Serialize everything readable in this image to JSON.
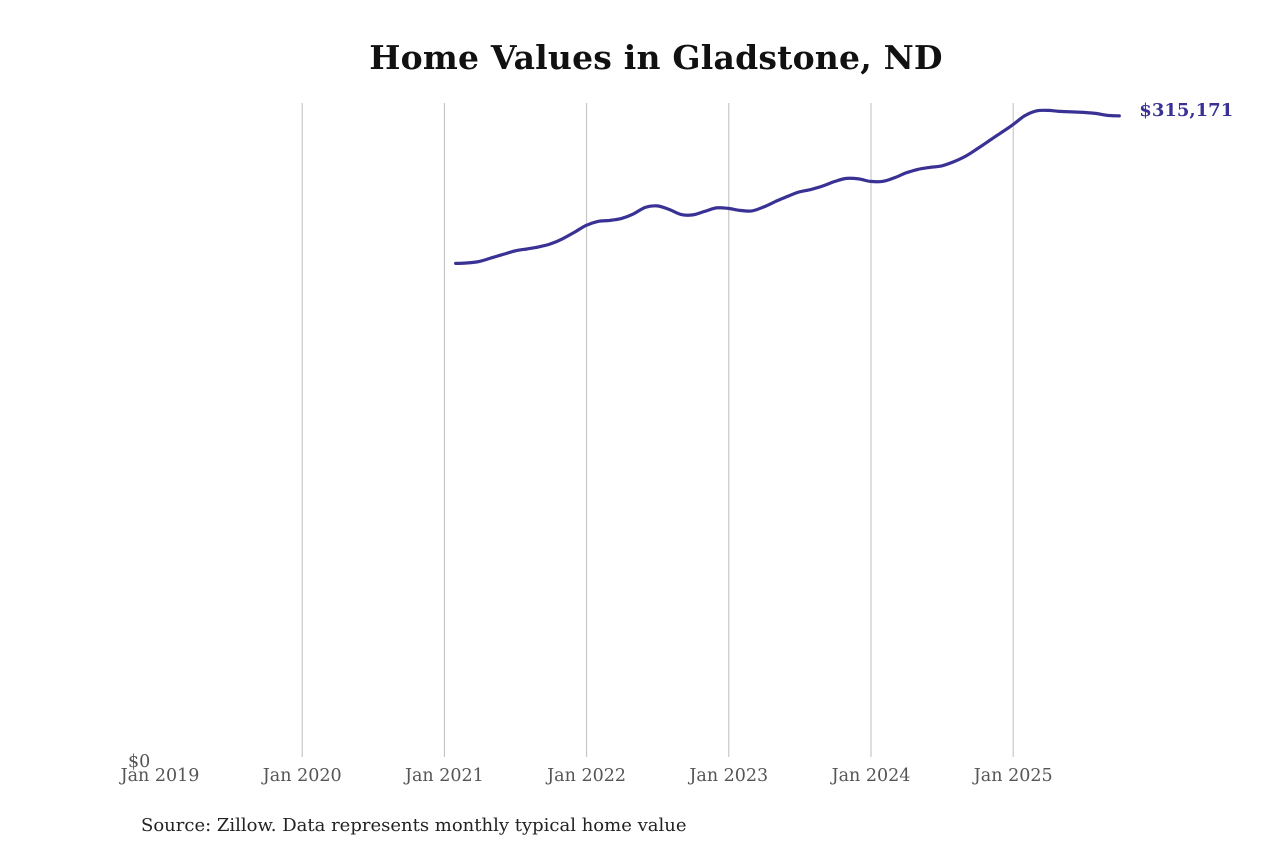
{
  "title": "Home Values in Gladstone, ND",
  "source_note": "Source: Zillow. Data represents monthly typical home value",
  "end_label": "$315,171",
  "colors": {
    "line": "#3a3194",
    "gridline": "#bdbdbd",
    "end_label": "#3a3194",
    "tick_text": "#555555"
  },
  "chart_data": {
    "type": "line",
    "title": "Home Values in Gladstone, ND",
    "xlabel": "",
    "ylabel": "",
    "x_tick_labels": [
      "Jan 2019",
      "Jan 2020",
      "Jan 2021",
      "Jan 2022",
      "Jan 2023",
      "Jan 2024",
      "Jan 2025"
    ],
    "y_tick_labels": [
      "$0"
    ],
    "ylim": [
      0,
      321500
    ],
    "xlim": [
      "2019-01",
      "2025-12"
    ],
    "grid": "vertical gridlines at each January",
    "legend": "none",
    "annotation": "$315,171 (last value, right of line end)",
    "series": [
      {
        "name": "Typical home value",
        "x": [
          "2021-01",
          "2021-02",
          "2021-03",
          "2021-04",
          "2021-05",
          "2021-06",
          "2021-07",
          "2021-08",
          "2021-09",
          "2021-10",
          "2021-11",
          "2021-12",
          "2022-01",
          "2022-02",
          "2022-03",
          "2022-04",
          "2022-05",
          "2022-06",
          "2022-07",
          "2022-08",
          "2022-09",
          "2022-10",
          "2022-11",
          "2022-12",
          "2023-01",
          "2023-02",
          "2023-03",
          "2023-04",
          "2023-05",
          "2023-06",
          "2023-07",
          "2023-08",
          "2023-09",
          "2023-10",
          "2023-11",
          "2023-12",
          "2024-01",
          "2024-02",
          "2024-03",
          "2024-04",
          "2024-05",
          "2024-06",
          "2024-07",
          "2024-08",
          "2024-09",
          "2024-10",
          "2024-11",
          "2024-12",
          "2025-01",
          "2025-02",
          "2025-03",
          "2025-04",
          "2025-05",
          "2025-06",
          "2025-07",
          "2025-08",
          "2025-09"
        ],
        "values": [
          242990,
          243230,
          243970,
          245680,
          247390,
          249110,
          250080,
          251060,
          252530,
          254980,
          258160,
          261590,
          263550,
          264040,
          265020,
          267220,
          270400,
          271140,
          269430,
          266970,
          266730,
          268440,
          270160,
          269910,
          268930,
          268690,
          270640,
          273330,
          275780,
          277980,
          279210,
          280920,
          283120,
          284590,
          284340,
          283120,
          283120,
          284830,
          287280,
          288990,
          289970,
          290710,
          292670,
          295360,
          299030,
          302940,
          306860,
          310770,
          315170,
          317620,
          317870,
          317380,
          317130,
          316890,
          316400,
          315420,
          315171
        ]
      }
    ]
  }
}
